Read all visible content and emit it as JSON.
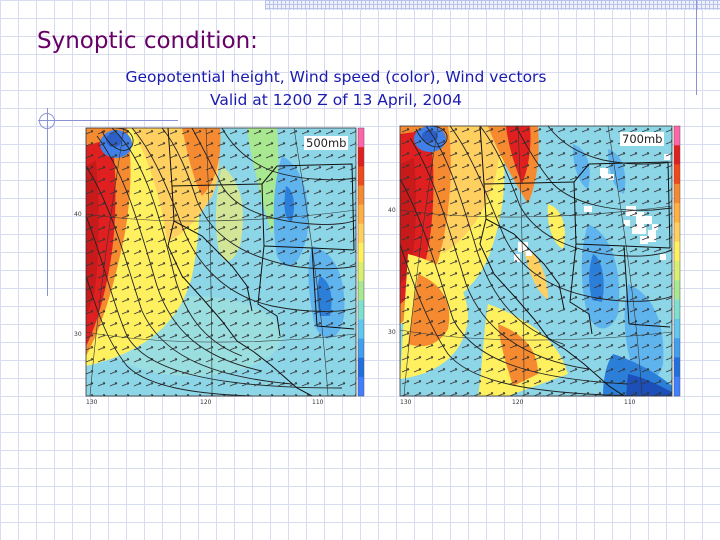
{
  "slide": {
    "title": "Synoptic condition:",
    "subtitle_line1": "Geopotential height, Wind speed (color), Wind vectors",
    "subtitle_line2": "Valid at 1200 Z of 13 April, 2004"
  },
  "panels": [
    {
      "label": "500mb",
      "lat_ticks": [
        "40",
        "30"
      ],
      "lon_ticks": [
        "130",
        "120",
        "110"
      ]
    },
    {
      "label": "700mb",
      "lat_ticks": [
        "40",
        "30"
      ],
      "lon_ticks": [
        "130",
        "120",
        "110"
      ]
    }
  ],
  "colorbar_colors": [
    "#ff66aa",
    "#e02020",
    "#f04a1a",
    "#f58a30",
    "#ffb040",
    "#ffd060",
    "#fff060",
    "#d8f070",
    "#a8e890",
    "#80e0d0",
    "#60c8f0",
    "#40a0f0",
    "#2070e0",
    "#4080ff"
  ],
  "palette": {
    "blue_deep": "#2c7fd8",
    "cyan": "#8cd6e8",
    "yellow": "#ffe566",
    "orange": "#f49a3a",
    "red": "#e0402a"
  }
}
